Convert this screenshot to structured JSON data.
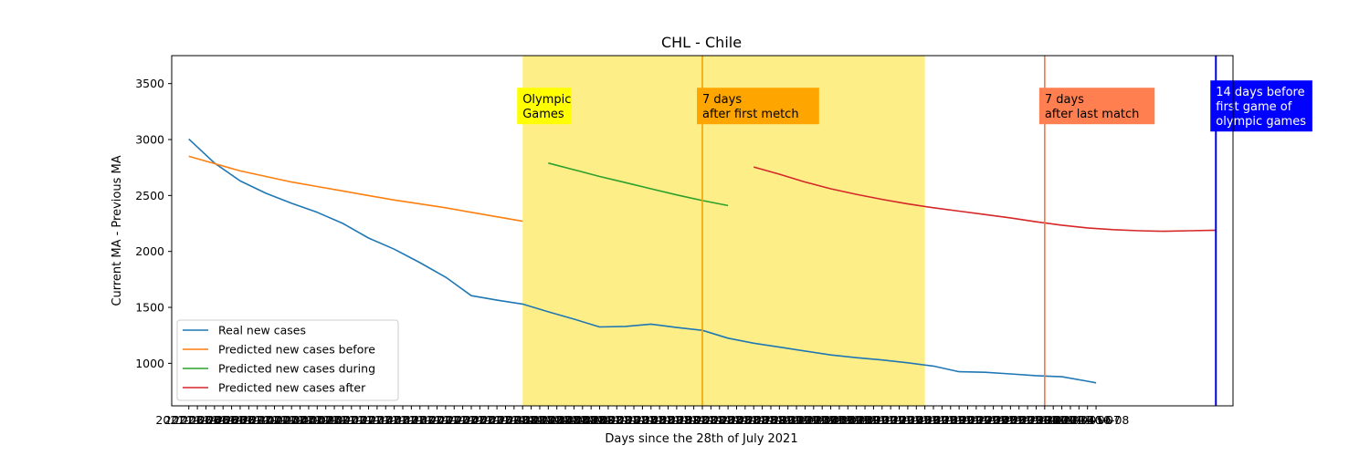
{
  "chart_data": {
    "type": "line",
    "title": "CHL - Chile",
    "xlabel": "Days since the 28th of July 2021",
    "ylabel": "Current MA - Previous MA",
    "ylim": [
      620,
      3750
    ],
    "yticks": [
      1000,
      1500,
      2000,
      2500,
      3000,
      3500
    ],
    "x": [
      "2021-06-24",
      "2021-06-25",
      "2021-06-26",
      "2021-06-27",
      "2021-06-28",
      "2021-06-29",
      "2021-06-30",
      "2021-07-01",
      "2021-07-02",
      "2021-07-03",
      "2021-07-04",
      "2021-07-05",
      "2021-07-06",
      "2021-07-07",
      "2021-07-08",
      "2021-07-09",
      "2021-07-10",
      "2021-07-11",
      "2021-07-12",
      "2021-07-13",
      "2021-07-14",
      "2021-07-15",
      "2021-07-16",
      "2021-07-17",
      "2021-07-18",
      "2021-07-19",
      "2021-07-20",
      "2021-07-21",
      "2021-07-22",
      "2021-07-23",
      "2021-07-24",
      "2021-07-25",
      "2021-07-26",
      "2021-07-27",
      "2021-07-28",
      "2021-07-29",
      "2021-07-30",
      "2021-07-31",
      "2021-08-01",
      "2021-08-02",
      "2021-08-03",
      "2021-08-04",
      "2021-08-05",
      "2021-08-06",
      "2021-08-07",
      "2021-08-08",
      "2021-08-09",
      "2021-08-10",
      "2021-08-11",
      "2021-08-12",
      "2021-08-13",
      "2021-08-14",
      "2021-08-15",
      "2021-08-16",
      "2021-08-17",
      "2021-08-18",
      "2021-08-19",
      "2021-08-20",
      "2021-08-21",
      "2021-08-22",
      "2021-08-23",
      "2021-08-24",
      "2021-08-25",
      "2021-08-26",
      "2021-08-27",
      "2021-08-28",
      "2021-08-29",
      "2021-08-30",
      "2021-08-31",
      "2021-09-01",
      "2021-09-02",
      "2021-09-03",
      "2021-09-04",
      "2021-09-05",
      "2021-09-06",
      "2021-09-07",
      "2021-09-08",
      "2021-09-09",
      "2021-09-10",
      "2021-09-11",
      "2021-09-12",
      "2021-09-13",
      "2021-09-14",
      "2021-09-15",
      "2021-09-16",
      "2021-09-17",
      "2021-09-18",
      "2021-09-19",
      "2021-09-20",
      "2021-09-21",
      "2021-09-22",
      "2021-09-23",
      "2021-09-24",
      "2021-09-25",
      "2021-09-26",
      "2021-09-27",
      "2021-09-28",
      "2021-09-29",
      "2021-09-30",
      "2021-10-01",
      "2021-10-02",
      "2021-10-03",
      "2021-10-04",
      "2021-10-05",
      "2021-10-06",
      "2021-10-07",
      "2021-10-08"
    ],
    "xlim": [
      "2021-06-22",
      "2021-10-24"
    ],
    "series": [
      {
        "name": "Real new cases",
        "color": "#1f77b4",
        "x": [
          "2021-06-24",
          "2021-06-27",
          "2021-06-30",
          "2021-07-03",
          "2021-07-06",
          "2021-07-09",
          "2021-07-12",
          "2021-07-15",
          "2021-07-18",
          "2021-07-21",
          "2021-07-24",
          "2021-07-27",
          "2021-07-30",
          "2021-08-02",
          "2021-08-05",
          "2021-08-08",
          "2021-08-11",
          "2021-08-14",
          "2021-08-17",
          "2021-08-20",
          "2021-08-23",
          "2021-08-26",
          "2021-08-29",
          "2021-09-01",
          "2021-09-04",
          "2021-09-07",
          "2021-09-10",
          "2021-09-13",
          "2021-09-16",
          "2021-09-19",
          "2021-09-22",
          "2021-09-25",
          "2021-09-28",
          "2021-10-01",
          "2021-10-04",
          "2021-10-07",
          "2021-10-08"
        ],
        "values": [
          3005,
          2790,
          2630,
          2520,
          2430,
          2350,
          2250,
          2120,
          2020,
          1900,
          1770,
          1605,
          1565,
          1530,
          1460,
          1395,
          1325,
          1330,
          1350,
          1320,
          1295,
          1225,
          1180,
          1145,
          1110,
          1075,
          1050,
          1030,
          1005,
          975,
          925,
          920,
          905,
          890,
          880,
          840,
          825
        ]
      },
      {
        "name": "Predicted new cases before",
        "color": "#ff7f0e",
        "x": [
          "2021-06-24",
          "2021-06-27",
          "2021-06-30",
          "2021-07-03",
          "2021-07-06",
          "2021-07-09",
          "2021-07-12",
          "2021-07-15",
          "2021-07-18",
          "2021-07-21",
          "2021-07-24",
          "2021-07-27",
          "2021-07-30",
          "2021-08-02"
        ],
        "values": [
          2850,
          2785,
          2720,
          2670,
          2620,
          2580,
          2540,
          2500,
          2460,
          2425,
          2390,
          2350,
          2310,
          2270
        ]
      },
      {
        "name": "Predicted new cases during",
        "color": "#2ca02c",
        "x": [
          "2021-08-05",
          "2021-08-08",
          "2021-08-11",
          "2021-08-14",
          "2021-08-17",
          "2021-08-20",
          "2021-08-23",
          "2021-08-26"
        ],
        "values": [
          2790,
          2730,
          2670,
          2615,
          2560,
          2505,
          2455,
          2410
        ]
      },
      {
        "name": "Predicted new cases after",
        "color": "#d62728",
        "x": [
          "2021-08-29",
          "2021-09-01",
          "2021-09-04",
          "2021-09-07",
          "2021-09-10",
          "2021-09-13",
          "2021-09-16",
          "2021-09-19",
          "2021-09-22",
          "2021-09-25",
          "2021-09-28",
          "2021-10-01",
          "2021-10-04",
          "2021-10-07",
          "2021-10-10",
          "2021-10-13",
          "2021-10-16",
          "2021-10-19",
          "2021-10-22",
          "2021-10-22"
        ],
        "values": [
          2755,
          2690,
          2620,
          2560,
          2510,
          2465,
          2425,
          2390,
          2360,
          2330,
          2300,
          2265,
          2235,
          2210,
          2195,
          2185,
          2180,
          2185,
          2190,
          2175
        ]
      }
    ],
    "shaded_regions": [
      {
        "from": "2021-08-02",
        "to": "2021-09-18",
        "color": "#fdee88"
      }
    ],
    "vlines": [
      {
        "x": "2021-08-23",
        "color": "#f5a300"
      },
      {
        "x": "2021-10-02",
        "color": "#f07a4a"
      },
      {
        "x": "2021-10-22",
        "color": "#0000ee"
      }
    ],
    "annotations": [
      {
        "x": "2021-08-02",
        "y": 3300,
        "lines": [
          "Olympic",
          "Games"
        ],
        "bg": "#ffff00",
        "fg": "#000000"
      },
      {
        "x": "2021-08-23",
        "y": 3300,
        "lines": [
          "7 days",
          "after first metch"
        ],
        "bg": "#ffa500",
        "fg": "#000000"
      },
      {
        "x": "2021-10-02",
        "y": 3300,
        "lines": [
          "7 days",
          "after last match"
        ],
        "bg": "#ff7f50",
        "fg": "#000000"
      },
      {
        "x": "2021-10-22",
        "y": 3300,
        "lines": [
          "14 days before",
          "first game of",
          "olympic games"
        ],
        "bg": "#0000ff",
        "fg": "#ffffff"
      }
    ],
    "grid": false,
    "legend_position": "lower-left"
  }
}
